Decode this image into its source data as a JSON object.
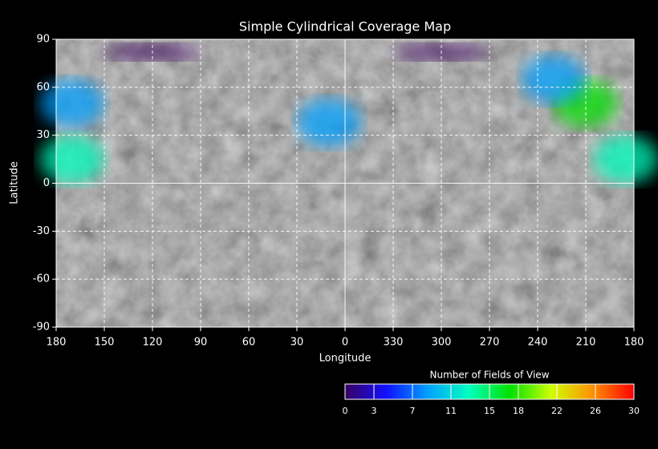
{
  "chart_data": {
    "type": "coverage-map",
    "title": "Simple Cylindrical Coverage Map",
    "xlabel": "Longitude",
    "ylabel": "Latitude",
    "xlim": [
      180,
      -180
    ],
    "ylim": [
      -90,
      90
    ],
    "xticks": [
      180,
      150,
      120,
      90,
      60,
      30,
      0,
      {
        "value": -30,
        "label": "330"
      },
      {
        "value": -60,
        "label": "300"
      },
      {
        "value": -90,
        "label": "270"
      },
      {
        "value": -120,
        "label": "240"
      },
      {
        "value": -150,
        "label": "210"
      },
      {
        "value": -180,
        "label": "180"
      }
    ],
    "yticks": [
      90,
      60,
      30,
      0,
      -30,
      -60,
      -90
    ],
    "grid": true,
    "colorbar": {
      "label": "Number of Fields of View",
      "clim": [
        0,
        30
      ],
      "ticks": [
        0,
        3,
        7,
        11,
        15,
        18,
        22,
        26,
        30
      ],
      "colorscale": [
        "#3a0060",
        "#1010ff",
        "#00a0ff",
        "#00ffc0",
        "#00e000",
        "#d0ff00",
        "#ff9000",
        "#ff0000"
      ]
    },
    "regions": [
      {
        "lon": 10,
        "lat": 38,
        "value": 10
      },
      {
        "lon": -150,
        "lat": 50,
        "value": 16
      },
      {
        "lon": -130,
        "lat": 65,
        "value": 8
      },
      {
        "lon": 170,
        "lat": 50,
        "value": 7
      },
      {
        "lon": 170,
        "lat": 15,
        "value": 14
      },
      {
        "lon": -175,
        "lat": 15,
        "value": 13
      },
      {
        "lon": 120,
        "lat": 82,
        "value": 2
      },
      {
        "lon": -60,
        "lat": 82,
        "value": 2
      }
    ]
  }
}
